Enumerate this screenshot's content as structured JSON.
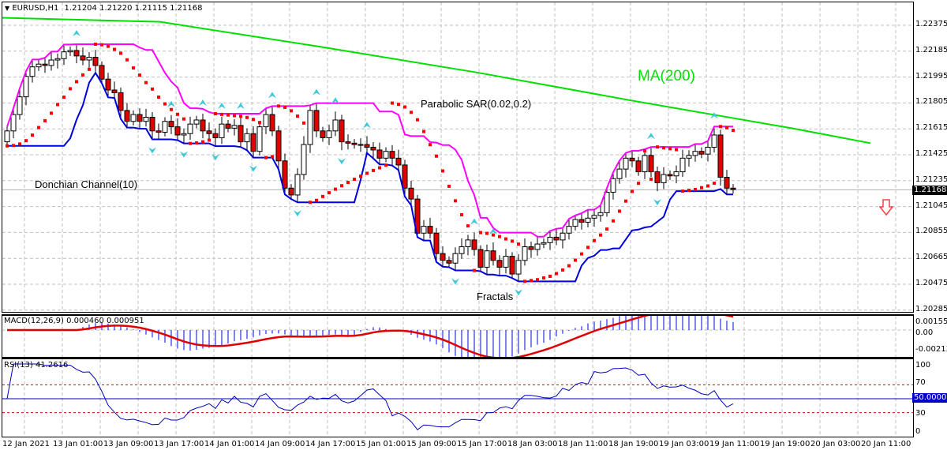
{
  "header": {
    "symbol": "EURUSD,H1",
    "ohlc": "1.21204 1.21220 1.21115 1.21168",
    "title_full": "EURUSD,H1  1.21204 1.21220 1.21115 1.21168"
  },
  "annotations": {
    "ma": "MA(200)",
    "psar": "Parabolic SAR(0.02,0.2)",
    "donchian": "Donchian Channel(10)",
    "fractals": "Fractals"
  },
  "price_axis": {
    "ticks": [
      "1.22375",
      "1.22185",
      "1.21995",
      "1.21805",
      "1.21615",
      "1.21425",
      "1.21235",
      "1.21045",
      "1.20855",
      "1.20665",
      "1.20475",
      "1.20285"
    ],
    "current_price": "1.21168"
  },
  "macd": {
    "label": "MACD(12,26,9) 0.000460 0.000951",
    "ticks": [
      "0.00155",
      "0.00",
      "-0.002132"
    ]
  },
  "rsi": {
    "label": "RSI(13) 41.2616",
    "ticks": [
      "100",
      "70",
      "30",
      "0"
    ],
    "level_tag": "50.0000"
  },
  "time_axis": [
    "12 Jan 2021",
    "13 Jan 01:00",
    "13 Jan 09:00",
    "13 Jan 17:00",
    "14 Jan 01:00",
    "14 Jan 09:00",
    "14 Jan 17:00",
    "15 Jan 01:00",
    "15 Jan 09:00",
    "15 Jan 17:00",
    "18 Jan 03:00",
    "18 Jan 11:00",
    "18 Jan 19:00",
    "19 Jan 03:00",
    "19 Jan 11:00",
    "19 Jan 19:00",
    "20 Jan 03:00",
    "20 Jan 11:00"
  ],
  "signal": {
    "direction": "sell-arrow-down",
    "color": "#ff4040"
  },
  "colors": {
    "bull": "#ffffff",
    "bear": "#e00000",
    "ma": "#00e000",
    "donchian_upper": "#ff00ff",
    "donchian_lower": "#0000e0",
    "psar": "#ff0000",
    "fractal": "#40c8d8",
    "macd_hist": "#0000e0",
    "macd_signal": "#e00000",
    "rsi": "#0000c0",
    "rsi_levels": "#e00000"
  },
  "chart_data": {
    "type": "candlestick",
    "title": "EURUSD,H1",
    "ylim": [
      1.20285,
      1.22375
    ],
    "candles_close_approx": [
      1.216,
      1.2172,
      1.2185,
      1.22,
      1.2207,
      1.2209,
      1.2208,
      1.2212,
      1.2213,
      1.2218,
      1.2219,
      1.2215,
      1.2212,
      1.2214,
      1.2208,
      1.2198,
      1.219,
      1.2188,
      1.2175,
      1.2167,
      1.2172,
      1.2167,
      1.217,
      1.216,
      1.2159,
      1.2167,
      1.2163,
      1.2157,
      1.2158,
      1.2165,
      1.2168,
      1.216,
      1.2158,
      1.2155,
      1.2165,
      1.2162,
      1.2164,
      1.2152,
      1.2158,
      1.2145,
      1.2163,
      1.2172,
      1.216,
      1.2138,
      1.2118,
      1.2113,
      1.2128,
      1.215,
      1.2175,
      1.216,
      1.2155,
      1.216,
      1.2168,
      1.2152,
      1.2151,
      1.215,
      1.215,
      1.2148,
      1.2146,
      1.214,
      1.2145,
      1.214,
      1.2135,
      1.2118,
      1.211,
      1.2085,
      1.209,
      1.2085,
      1.207,
      1.2065,
      1.2063,
      1.207,
      1.2075,
      1.208,
      1.2073,
      1.206,
      1.2072,
      1.2065,
      1.206,
      1.2068,
      1.2055,
      1.2065,
      1.2075,
      1.2073,
      1.2077,
      1.2078,
      1.2082,
      1.208,
      1.2085,
      1.209,
      1.2095,
      1.2093,
      1.2096,
      1.2098,
      1.21,
      1.2115,
      1.2125,
      1.2132,
      1.214,
      1.2138,
      1.213,
      1.2142,
      1.213,
      1.2122,
      1.2128,
      1.2127,
      1.213,
      1.214,
      1.2142,
      1.2145,
      1.2143,
      1.2148,
      1.2157,
      1.2126,
      1.2118,
      1.2117
    ],
    "ma200": [
      [
        0,
        1.2243
      ],
      [
        200,
        1.224
      ],
      [
        400,
        1.2222
      ],
      [
        600,
        1.2203
      ],
      [
        800,
        1.2182
      ],
      [
        900,
        1.2172
      ],
      [
        1000,
        1.2162
      ],
      [
        1100,
        1.2151
      ]
    ],
    "rsi_last": 41.2616,
    "macd_main": 0.00046,
    "macd_signal": 0.000951
  }
}
